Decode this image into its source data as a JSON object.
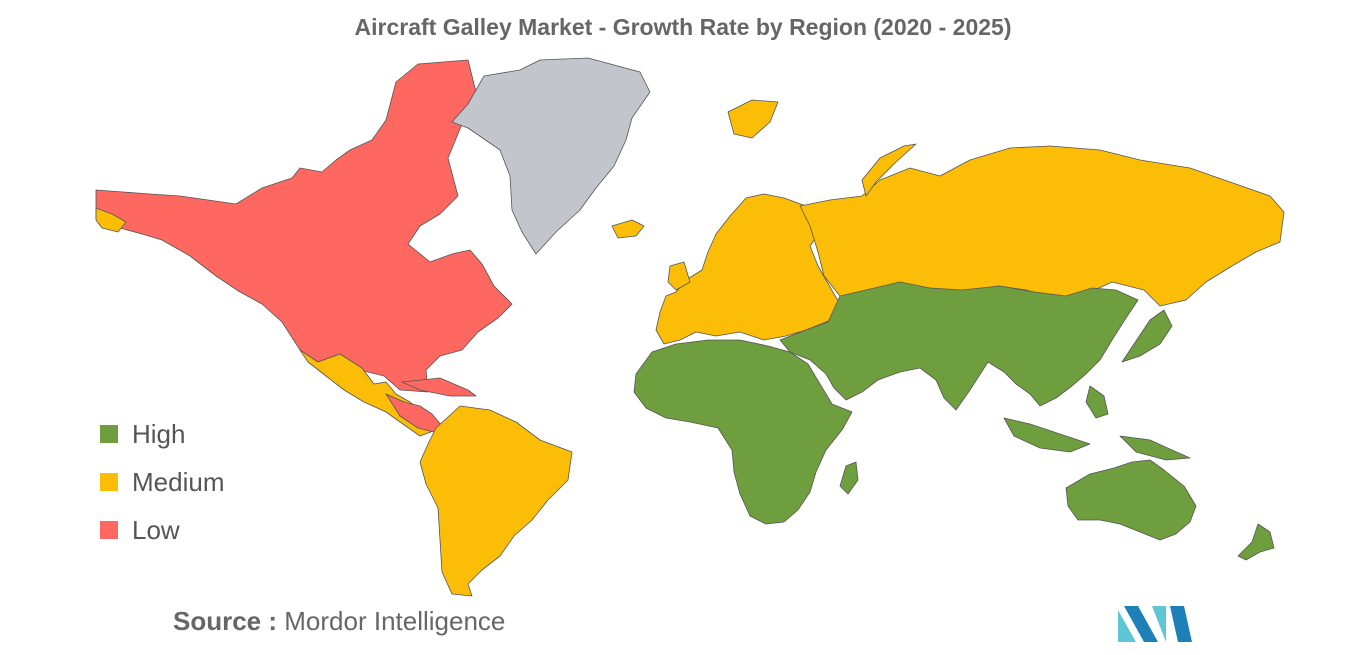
{
  "title": "Aircraft Galley Market - Growth Rate by Region (2020 - 2025)",
  "legend": [
    {
      "label": "High",
      "color": "#6f9e3e"
    },
    {
      "label": "Medium",
      "color": "#fbbd06"
    },
    {
      "label": "Low",
      "color": "#fe6861"
    }
  ],
  "no_data_color": "#c2c6cc",
  "source": {
    "prefix": "Source :",
    "text": "Mordor Intelligence"
  },
  "logo": {
    "icon": "mordor-intelligence-logo",
    "colors": [
      "#5fc6d4",
      "#1f7fb8"
    ]
  }
}
